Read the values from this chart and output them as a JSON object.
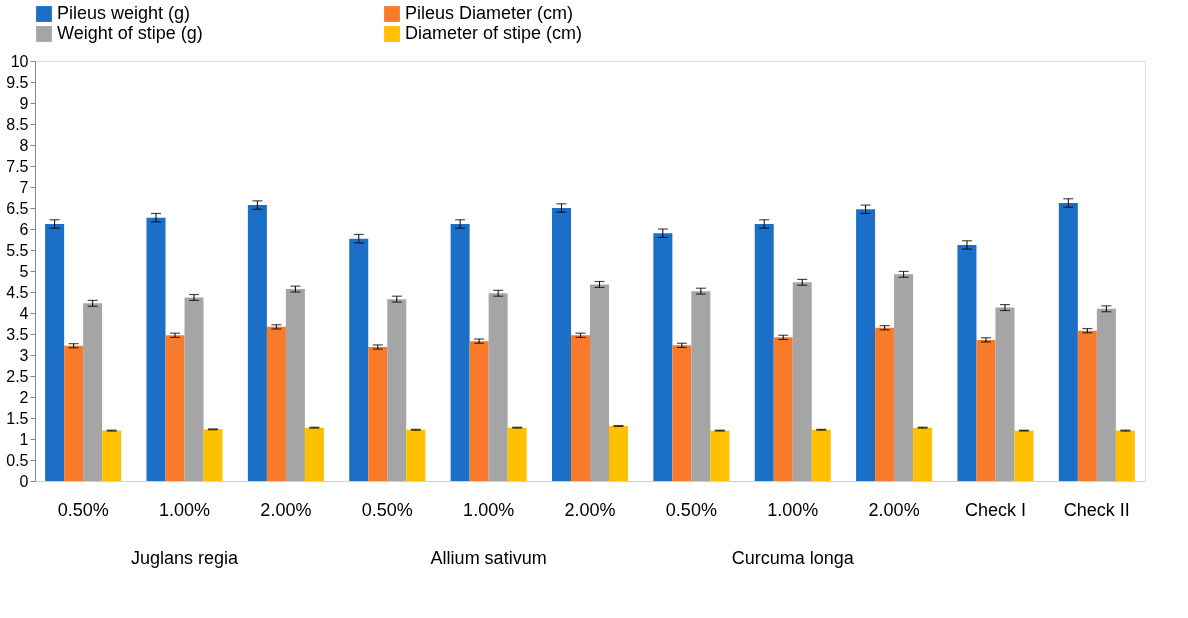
{
  "chart_data": {
    "type": "bar",
    "categories": [
      "0.50%",
      "1.00%",
      "2.00%",
      "0.50%",
      "1.00%",
      "2.00%",
      "0.50%",
      "1.00%",
      "2.00%",
      "Check I",
      "Check II"
    ],
    "series": [
      {
        "name": "Pileus weight (g)",
        "color": "#1b6fc6",
        "values": [
          6.12,
          6.27,
          6.57,
          5.77,
          6.12,
          6.5,
          5.9,
          6.12,
          6.47,
          5.62,
          6.62
        ],
        "errors": [
          0.1,
          0.1,
          0.1,
          0.1,
          0.1,
          0.1,
          0.1,
          0.1,
          0.1,
          0.1,
          0.1
        ]
      },
      {
        "name": " Pileus Diameter (cm)",
        "color": "#f77b2a",
        "values": [
          3.22,
          3.47,
          3.67,
          3.19,
          3.33,
          3.47,
          3.23,
          3.42,
          3.65,
          3.36,
          3.58
        ],
        "errors": [
          0.05,
          0.05,
          0.05,
          0.05,
          0.05,
          0.05,
          0.05,
          0.05,
          0.05,
          0.05,
          0.05
        ]
      },
      {
        "name": "Weight of stipe (g)",
        "color": "#a5a5a5",
        "values": [
          4.23,
          4.37,
          4.57,
          4.33,
          4.47,
          4.68,
          4.52,
          4.73,
          4.92,
          4.13,
          4.1
        ],
        "errors": [
          0.07,
          0.07,
          0.07,
          0.07,
          0.07,
          0.07,
          0.07,
          0.07,
          0.07,
          0.07,
          0.07
        ]
      },
      {
        "name": "Diameter of stipe  (cm)",
        "color": "#ffc000",
        "values": [
          1.2,
          1.23,
          1.27,
          1.22,
          1.27,
          1.31,
          1.2,
          1.22,
          1.27,
          1.2,
          1.2
        ],
        "errors": [
          0.01,
          0.01,
          0.01,
          0.01,
          0.01,
          0.01,
          0.01,
          0.01,
          0.01,
          0.01,
          0.01
        ]
      }
    ],
    "annotations": [
      "Juglans regia",
      "Allium sativum",
      "Curcuma longa"
    ],
    "ylim": [
      0,
      10
    ],
    "yticks": [
      0,
      0.5,
      1,
      1.5,
      2,
      2.5,
      3,
      3.5,
      4,
      4.5,
      5,
      5.5,
      6,
      6.5,
      7,
      7.5,
      8,
      8.5,
      9,
      9.5,
      10
    ],
    "grid": false,
    "legend": "top"
  }
}
